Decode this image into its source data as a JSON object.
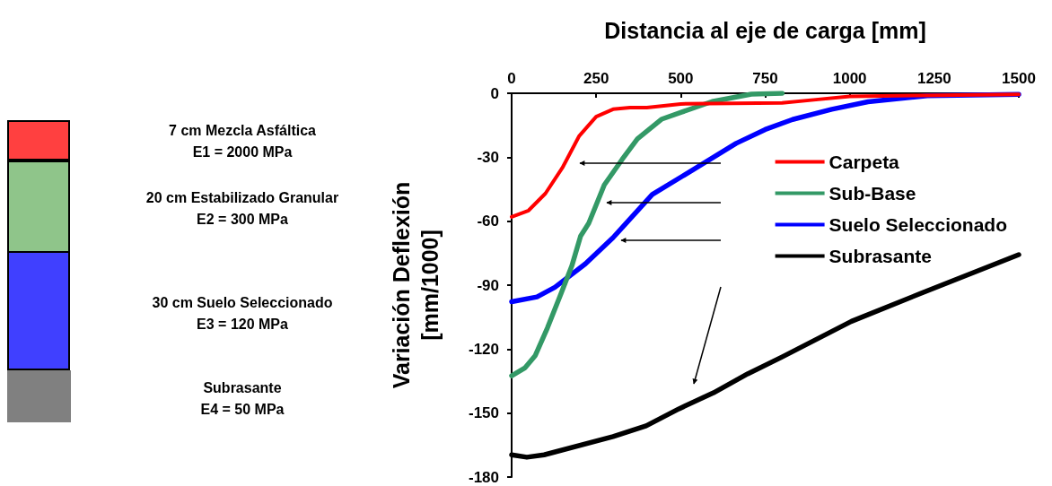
{
  "chart_data": {
    "type": "line",
    "xlabel": "Distancia al eje de carga [mm]",
    "ylabel": "Variación Deflexión\n[mm/1000]",
    "xlim": [
      0,
      1500
    ],
    "xticks": [
      0,
      250,
      500,
      750,
      1000,
      1250,
      1500
    ],
    "ylim": [
      -180,
      0
    ],
    "yticks": [
      -180,
      -150,
      -120,
      -90,
      -60,
      -30,
      0
    ],
    "grid": false,
    "legend": "right",
    "marker": "none",
    "line_style": "solid",
    "series": [
      {
        "name": "Carpeta",
        "color": "#ff0000",
        "x": [
          0,
          50,
          100,
          150,
          200,
          250,
          300,
          350,
          400,
          500,
          800,
          900,
          1000,
          1200,
          1500
        ],
        "values": [
          -58,
          -55,
          -47,
          -35,
          -20,
          -11,
          -7.5,
          -6.7,
          -6.7,
          -5,
          -4.5,
          -3,
          -1.5,
          -1,
          -0.5
        ]
      },
      {
        "name": "Sub-Base",
        "color": "#339966",
        "x": [
          0,
          40,
          70,
          106,
          146,
          178,
          204,
          228,
          274,
          327,
          372,
          443,
          504,
          593,
          709,
          800
        ],
        "values": [
          -132.5,
          -128.7,
          -123,
          -110,
          -94,
          -81,
          -67,
          -61,
          -43,
          -31,
          -21.4,
          -12.2,
          -8.8,
          -3.9,
          -0.4,
          0
        ]
      },
      {
        "name": "Suelo Seleccionado",
        "color": "#0000ff",
        "x": [
          0,
          75,
          128,
          218,
          300,
          416,
          504,
          664,
          750,
          831,
          947,
          1054,
          1229,
          1500
        ],
        "values": [
          -97.8,
          -95.5,
          -91,
          -80,
          -67.7,
          -47.5,
          -39,
          -23.5,
          -17,
          -12.3,
          -7.5,
          -4,
          -1.2,
          -0.5
        ]
      },
      {
        "name": "Subrasante",
        "color": "#000000",
        "x": [
          0,
          45,
          96,
          300,
          398,
          495,
          597,
          698,
          801,
          1005,
          1208,
          1500
        ],
        "values": [
          -169.6,
          -170.7,
          -169.6,
          -161,
          -156,
          -148,
          -140.5,
          -131.6,
          -123.6,
          -107,
          -94,
          -75.7
        ]
      }
    ],
    "annotations": [
      "7 cm Mezcla Asfáltica\nE1 = 2000 MPa",
      "20 cm Estabilizado Granular\nE2 = 300 MPa",
      "30 cm Suelo Seleccionado\nE3 = 120 MPa",
      "Subrasante\nE4 = 50 MPa"
    ]
  }
}
